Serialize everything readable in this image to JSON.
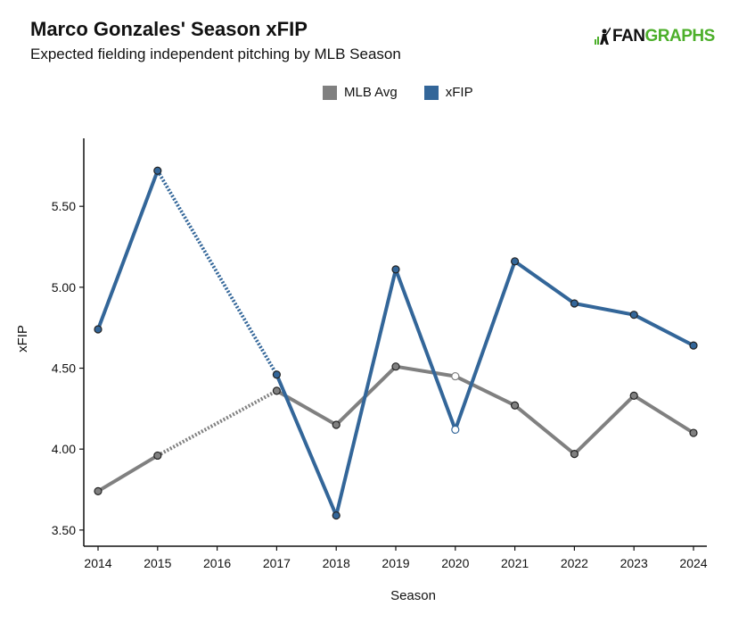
{
  "header": {
    "title": "Marco Gonzales' Season xFIP",
    "subtitle": "Expected fielding independent pitching by MLB Season",
    "logo_fan": "FAN",
    "logo_graphs": "GRAPHS"
  },
  "colors": {
    "mlb_avg": "#808080",
    "xfip": "#336699",
    "logo_green": "#4caf2a"
  },
  "chart_data": {
    "type": "line",
    "x": [
      2014,
      2015,
      2016,
      2017,
      2018,
      2019,
      2020,
      2021,
      2022,
      2023,
      2024
    ],
    "xlabel": "Season",
    "ylabel": "xFIP",
    "ylim": [
      3.4,
      5.92
    ],
    "yticks": [
      "3.50",
      "4.00",
      "4.50",
      "5.00",
      "5.50"
    ],
    "legend_position": "top-center",
    "grid": false,
    "series": [
      {
        "name": "MLB Avg",
        "values": [
          3.74,
          3.96,
          null,
          4.36,
          4.15,
          4.51,
          4.45,
          4.27,
          3.97,
          4.33,
          4.1
        ]
      },
      {
        "name": "xFIP",
        "values": [
          4.74,
          5.72,
          null,
          4.46,
          3.59,
          5.11,
          4.12,
          5.16,
          4.9,
          4.83,
          4.64
        ]
      }
    ],
    "gap_years": [
      2016
    ],
    "hollow_points_year": 2020
  }
}
